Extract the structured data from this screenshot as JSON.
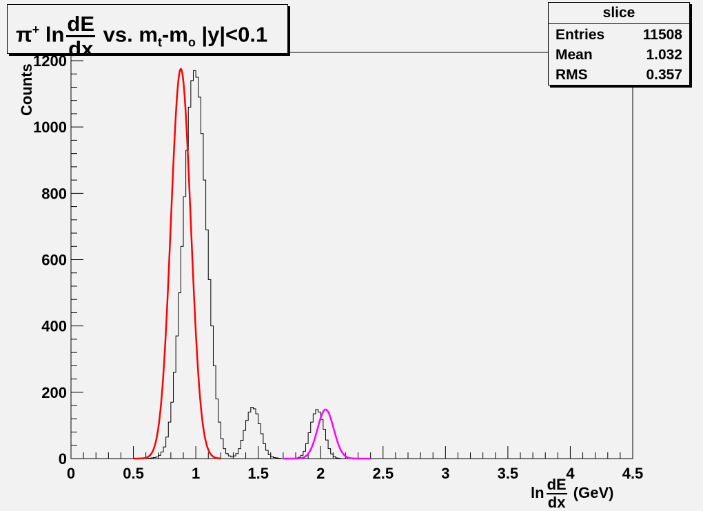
{
  "title": {
    "prefix": "π",
    "prefix_sup": "+",
    "ln": " ln",
    "frac_num": "dE",
    "frac_den": "dx",
    "mid": " vs. m",
    "sub_t": "t",
    "dash": "-m",
    "sub_o": "o",
    "tail": " |y|<0.1"
  },
  "stats": {
    "name": "slice",
    "rows": [
      {
        "key": "Entries",
        "value": "11508"
      },
      {
        "key": "Mean",
        "value": "1.032"
      },
      {
        "key": "RMS",
        "value": "0.357"
      }
    ]
  },
  "xlabel": {
    "pre": "ln",
    "frac_num": "dE",
    "frac_den": "dx",
    "post": " (GeV)"
  },
  "colors": {
    "histogram": "#000000",
    "fit_pion": "#ff0000",
    "fit_third": "#ff00ff",
    "background": "#f2f2f2"
  },
  "chart_data": {
    "type": "histogram",
    "title": "π+ ln dE/dx vs. mt-mo |y|<0.1",
    "xlabel": "ln dE/dx (GeV)",
    "ylabel": "Counts",
    "xlim": [
      0,
      4.5
    ],
    "ylim": [
      0,
      1200
    ],
    "x_ticks": [
      "0",
      "0.5",
      "1",
      "1.5",
      "2",
      "2.5",
      "3",
      "3.5",
      "4",
      "4.5"
    ],
    "y_ticks": [
      "0",
      "200",
      "400",
      "600",
      "800",
      "1000",
      "1200"
    ],
    "y_tick_values": [
      0,
      200,
      400,
      600,
      800,
      1000,
      1200
    ],
    "x_tick_values": [
      0,
      0.5,
      1,
      1.5,
      2,
      2.5,
      3,
      3.5,
      4,
      4.5
    ],
    "bin_width": 0.02,
    "histogram": {
      "x_start": 0.5,
      "counts": [
        0,
        0,
        0,
        0,
        0,
        0,
        1,
        2,
        3,
        5,
        10,
        20,
        35,
        65,
        110,
        170,
        260,
        370,
        500,
        640,
        790,
        930,
        1060,
        1140,
        1170,
        1150,
        1090,
        980,
        840,
        690,
        540,
        400,
        280,
        180,
        110,
        60,
        30,
        15,
        8,
        5,
        8,
        15,
        30,
        55,
        85,
        115,
        140,
        155,
        150,
        135,
        105,
        75,
        45,
        25,
        12,
        6,
        3,
        2,
        1,
        0,
        0,
        0,
        0,
        0,
        1,
        2,
        4,
        10,
        22,
        45,
        78,
        110,
        135,
        148,
        140,
        118,
        88,
        56,
        30,
        14,
        6,
        2,
        1,
        0
      ]
    },
    "series": [
      {
        "name": "fit_pion",
        "type": "gaussian",
        "amplitude": 1175,
        "mean": 0.88,
        "sigma": 0.08,
        "x_range": [
          0.5,
          1.2
        ]
      },
      {
        "name": "fit_third",
        "type": "gaussian",
        "amplitude": 148,
        "mean": 2.04,
        "sigma": 0.065,
        "x_range": [
          1.7,
          2.4
        ]
      }
    ]
  }
}
